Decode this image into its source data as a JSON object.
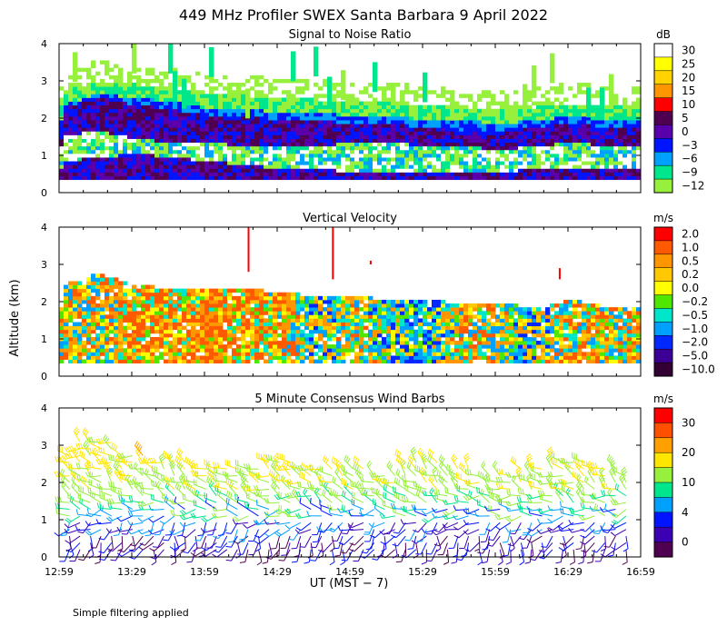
{
  "chart_data": {
    "type": "heatmap",
    "title": "449 MHz Profiler SWEX Santa Barbara  9 April 2022",
    "ylabel": "Altitude (km)",
    "xlabel": "UT  (MST − 7)",
    "note": "Simple filtering applied",
    "x_ticks": [
      "12:59",
      "13:29",
      "13:59",
      "14:29",
      "14:59",
      "15:29",
      "15:59",
      "16:29",
      "16:59"
    ],
    "x_range_hours": [
      12.983,
      16.983
    ],
    "panels": [
      {
        "title": "Signal to Noise Ratio",
        "unit": "dB",
        "ylim": [
          0,
          4
        ],
        "y_ticks": [
          "0",
          "1",
          "2",
          "3",
          "4"
        ],
        "colorbar_labels": [
          "30",
          "25",
          "20",
          "15",
          "10",
          "5",
          "0",
          "−3",
          "−6",
          "−9",
          "−12"
        ],
        "colors": [
          "#ffffff",
          "#ffff00",
          "#ffd200",
          "#ff9600",
          "#ff0000",
          "#500050",
          "#5a00aa",
          "#0014ff",
          "#00a0ff",
          "#00e68c",
          "#96f03c"
        ],
        "profiles": [
          {
            "t": 13.0,
            "top": 2.3,
            "band": [
              1.5,
              2.2
            ],
            "low": 0.8
          },
          {
            "t": 13.25,
            "top": 2.6,
            "band": [
              1.6,
              2.5
            ],
            "low": 0.9
          },
          {
            "t": 13.5,
            "top": 2.5,
            "band": [
              1.4,
              2.3
            ],
            "low": 1.0
          },
          {
            "t": 13.75,
            "top": 2.4,
            "band": [
              1.3,
              2.2
            ],
            "low": 0.9
          },
          {
            "t": 14.0,
            "top": 2.2,
            "band": [
              1.3,
              2.0
            ],
            "low": 0.8
          },
          {
            "t": 14.25,
            "top": 2.2,
            "band": [
              1.2,
              2.0
            ],
            "low": 0.7
          },
          {
            "t": 14.5,
            "top": 2.1,
            "band": [
              1.2,
              1.9
            ],
            "low": 0.6
          },
          {
            "t": 14.75,
            "top": 2.1,
            "band": [
              1.2,
              1.9
            ],
            "low": 0.6
          },
          {
            "t": 15.0,
            "top": 2.0,
            "band": [
              1.3,
              1.8
            ],
            "low": 0.5
          },
          {
            "t": 15.25,
            "top": 2.0,
            "band": [
              1.3,
              1.8
            ],
            "low": 0.5
          },
          {
            "t": 15.5,
            "top": 1.9,
            "band": [
              1.2,
              1.7
            ],
            "low": 0.5
          },
          {
            "t": 15.75,
            "top": 1.9,
            "band": [
              1.2,
              1.6
            ],
            "low": 0.5
          },
          {
            "t": 16.0,
            "top": 1.8,
            "band": [
              1.1,
              1.6
            ],
            "low": 0.5
          },
          {
            "t": 16.25,
            "top": 1.9,
            "band": [
              1.2,
              1.7
            ],
            "low": 0.6
          },
          {
            "t": 16.5,
            "top": 2.0,
            "band": [
              1.3,
              1.8
            ],
            "low": 0.6
          },
          {
            "t": 16.75,
            "top": 1.9,
            "band": [
              1.2,
              1.7
            ],
            "low": 0.6
          },
          {
            "t": 16.98,
            "top": 1.9,
            "band": [
              1.2,
              1.7
            ],
            "low": 0.6
          }
        ]
      },
      {
        "title": "Vertical Velocity",
        "unit": "m/s",
        "ylim": [
          0,
          4
        ],
        "y_ticks": [
          "0",
          "1",
          "2",
          "3",
          "4"
        ],
        "colorbar_labels": [
          "2.0",
          "1.0",
          "0.5",
          "0.2",
          "0.0",
          "−0.2",
          "−0.5",
          "−1.0",
          "−2.0",
          "−5.0",
          "−10.0"
        ],
        "colors": [
          "#ff0000",
          "#ff5a00",
          "#ff9600",
          "#ffc800",
          "#ffff00",
          "#50e600",
          "#00e6c8",
          "#00a0ff",
          "#0028ff",
          "#3c0096",
          "#320032"
        ],
        "profiles": [
          {
            "t": 13.0,
            "top": 2.4,
            "mean": 0.3
          },
          {
            "t": 13.25,
            "top": 2.7,
            "mean": 0.1
          },
          {
            "t": 13.5,
            "top": 2.4,
            "mean": 0.8
          },
          {
            "t": 13.75,
            "top": 2.3,
            "mean": 0.6
          },
          {
            "t": 14.0,
            "top": 2.3,
            "mean": 0.9
          },
          {
            "t": 14.25,
            "top": 2.3,
            "mean": 0.7
          },
          {
            "t": 14.5,
            "top": 2.2,
            "mean": 0.5
          },
          {
            "t": 14.75,
            "top": 2.1,
            "mean": -0.3
          },
          {
            "t": 15.0,
            "top": 2.1,
            "mean": 0.2
          },
          {
            "t": 15.25,
            "top": 2.0,
            "mean": -0.2
          },
          {
            "t": 15.5,
            "top": 2.0,
            "mean": -0.8
          },
          {
            "t": 15.75,
            "top": 1.9,
            "mean": 0.4
          },
          {
            "t": 16.0,
            "top": 1.9,
            "mean": 0.1
          },
          {
            "t": 16.25,
            "top": 1.8,
            "mean": -0.4
          },
          {
            "t": 16.5,
            "top": 2.0,
            "mean": 0.5
          },
          {
            "t": 16.75,
            "top": 1.8,
            "mean": 0.3
          },
          {
            "t": 16.98,
            "top": 1.8,
            "mean": 0.3
          }
        ]
      },
      {
        "title": "5 Minute Consensus Wind Barbs",
        "unit": "m/s",
        "ylim": [
          0,
          4
        ],
        "y_ticks": [
          "0",
          "1",
          "2",
          "3",
          "4"
        ],
        "colorbar_labels": [
          "30",
          "20",
          "10",
          "4",
          "0"
        ],
        "colors": [
          "#ff0000",
          "#ff5000",
          "#ffa000",
          "#ffe600",
          "#96f03c",
          "#00e68c",
          "#00a0ff",
          "#0014ff",
          "#3c00b4",
          "#500050"
        ],
        "speed_levels": [
          0,
          2,
          4,
          6,
          8,
          10,
          14,
          18,
          22,
          26,
          30
        ],
        "wind_profile": {
          "altitude_km": [
            0.2,
            0.6,
            1.0,
            1.4,
            1.8,
            2.2,
            2.6,
            3.0
          ],
          "speed_ms": [
            3,
            5,
            8,
            11,
            13,
            15,
            16,
            17
          ],
          "dir_deg": [
            200,
            230,
            270,
            290,
            300,
            300,
            295,
            290
          ],
          "top_km": [
            2.9,
            3.2,
            2.8,
            2.6,
            2.5,
            2.5,
            2.7,
            2.4,
            2.4,
            2.3,
            2.6,
            2.4,
            2.3,
            2.4,
            2.6,
            2.5,
            2.3
          ]
        }
      }
    ]
  }
}
